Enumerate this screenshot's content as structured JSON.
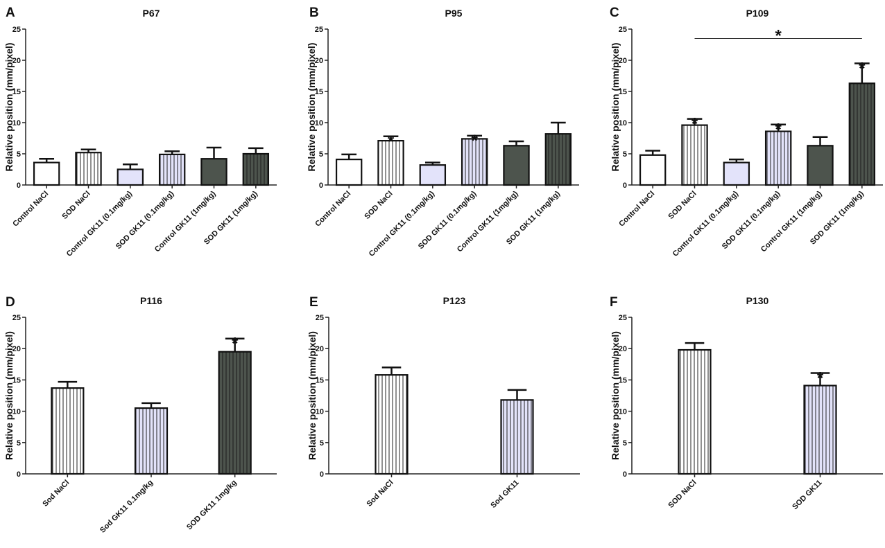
{
  "styles": {
    "open": {
      "fill": "#ffffff",
      "hatch": false
    },
    "open_hatched": {
      "fill": "#ffffff",
      "hatch": true
    },
    "lavender": {
      "fill": "#e3e3fa",
      "hatch": false
    },
    "lavender_hatched": {
      "fill": "#e3e3fa",
      "hatch": true
    },
    "dark": {
      "fill": "#4d544d",
      "hatch": false
    },
    "dark_hatched": {
      "fill": "#4d544d",
      "hatch": true
    }
  },
  "chart_data": [
    {
      "panel": "A",
      "type": "bar",
      "title": "P67",
      "ylabel": "Relative position (mm/pixel)",
      "ylim": [
        0,
        25
      ],
      "yticks": [
        0,
        5,
        10,
        15,
        20,
        25
      ],
      "categories": [
        "Control NaCl",
        "SOD NaCl",
        "Control GK11 (0.1mg/kg)",
        "SOD GK11 (0.1mg/kg)",
        "Control GK11 (1mg/kg)",
        "SOD GK11 (1mg/kg)"
      ],
      "values": [
        3.6,
        5.2,
        2.5,
        4.9,
        4.2,
        5.0
      ],
      "errors": [
        0.6,
        0.5,
        0.8,
        0.5,
        1.8,
        0.9
      ],
      "bar_styles": [
        "open",
        "open_hatched",
        "lavender",
        "lavender_hatched",
        "dark",
        "dark_hatched"
      ],
      "significance": [
        "",
        "",
        "",
        "",
        "",
        ""
      ],
      "bracket": null
    },
    {
      "panel": "B",
      "type": "bar",
      "title": "P95",
      "ylabel": "Relative position (mm/pixel)",
      "ylim": [
        0,
        25
      ],
      "yticks": [
        0,
        5,
        10,
        15,
        20,
        25
      ],
      "categories": [
        "Control NaCl",
        "SOD NaCl",
        "Control GK11 (0.1mg/kg)",
        "SOD GK11 (0.1mg/kg)",
        "Control GK11 (1mg/kg)",
        "SOD GK11 (1mg/kg)"
      ],
      "values": [
        4.1,
        7.1,
        3.2,
        7.4,
        6.3,
        8.2
      ],
      "errors": [
        0.8,
        0.7,
        0.4,
        0.5,
        0.7,
        1.8
      ],
      "bar_styles": [
        "open",
        "open_hatched",
        "lavender",
        "lavender_hatched",
        "dark",
        "dark_hatched"
      ],
      "significance": [
        "",
        "*",
        "",
        "*",
        "",
        ""
      ],
      "bracket": null
    },
    {
      "panel": "C",
      "type": "bar",
      "title": "P109",
      "ylabel": "Relative position (mm/pixel)",
      "ylim": [
        0,
        25
      ],
      "yticks": [
        0,
        5,
        10,
        15,
        20,
        25
      ],
      "categories": [
        "Control NaCl",
        "SOD NaCl",
        "Control GK11 (0.1mg/kg)",
        "SOD GK11 (0.1mg/kg)",
        "Control GK11 (1mg/kg)",
        "SOD GK11 (1mg/kg)"
      ],
      "values": [
        4.8,
        9.6,
        3.6,
        8.6,
        6.3,
        16.3
      ],
      "errors": [
        0.7,
        1.0,
        0.5,
        1.1,
        1.4,
        3.2
      ],
      "bar_styles": [
        "open",
        "open_hatched",
        "lavender",
        "lavender_hatched",
        "dark",
        "dark_hatched"
      ],
      "significance": [
        "",
        "*",
        "",
        "*",
        "",
        "*"
      ],
      "bracket": {
        "from": 1,
        "to": 5,
        "value": 23.5,
        "label": "*"
      }
    },
    {
      "panel": "D",
      "type": "bar",
      "title": "P116",
      "ylabel": "Relative position (mm/pixel)",
      "ylim": [
        0,
        25
      ],
      "yticks": [
        0,
        5,
        10,
        15,
        20,
        25
      ],
      "categories": [
        "Sod NaCl",
        "Sod GK11 0.1mg/kg",
        "SOD GK11 1mg/kg"
      ],
      "values": [
        13.7,
        10.5,
        19.5
      ],
      "errors": [
        1.0,
        0.8,
        2.1
      ],
      "bar_styles": [
        "open_hatched",
        "lavender_hatched",
        "dark_hatched"
      ],
      "significance": [
        "",
        "",
        "*"
      ],
      "bracket": null
    },
    {
      "panel": "E",
      "type": "bar",
      "title": "P123",
      "ylabel": "Relative position (mm/pixel)",
      "ylim": [
        0,
        25
      ],
      "yticks": [
        0,
        5,
        10,
        15,
        20,
        25
      ],
      "categories": [
        "Sod NaCl",
        "Sod GK11"
      ],
      "values": [
        15.8,
        11.8
      ],
      "errors": [
        1.2,
        1.6
      ],
      "bar_styles": [
        "open_hatched",
        "lavender_hatched"
      ],
      "significance": [
        "",
        ""
      ],
      "bracket": null
    },
    {
      "panel": "F",
      "type": "bar",
      "title": "P130",
      "ylabel": "Relative position (mm/pixel)",
      "ylim": [
        0,
        25
      ],
      "yticks": [
        0,
        5,
        10,
        15,
        20,
        25
      ],
      "categories": [
        "SOD NaCl",
        "SOD GK11"
      ],
      "values": [
        19.8,
        14.1
      ],
      "errors": [
        1.1,
        2.0
      ],
      "bar_styles": [
        "open_hatched",
        "lavender_hatched"
      ],
      "significance": [
        "",
        "*"
      ],
      "bracket": null
    }
  ]
}
